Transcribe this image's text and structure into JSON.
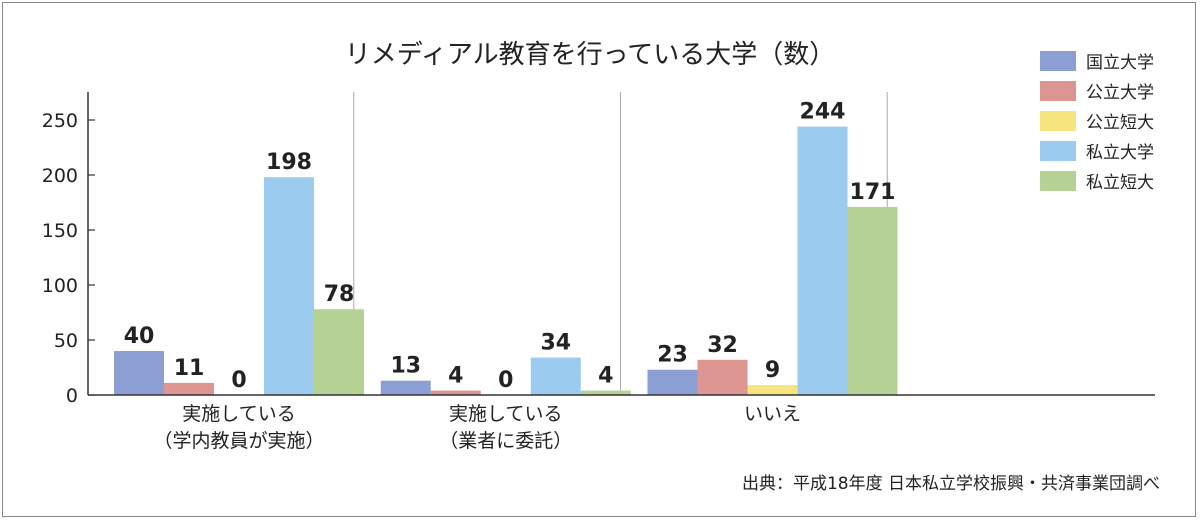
{
  "title": "リメディアル教育を行っている大学（数）",
  "source": "出典：平成18年度 日本私立学校振興・共済事業団調べ",
  "chart_data": {
    "type": "bar",
    "title": "リメディアル教育を行っている大学（数）",
    "categories": [
      [
        "実施している",
        "（学内教員が実施）"
      ],
      [
        "実施している",
        "（業者に委託）"
      ],
      [
        "いいえ"
      ],
      []
    ],
    "series": [
      {
        "name": "国立大学",
        "color": "#8b9fd4",
        "values": [
          40,
          13,
          23,
          null
        ]
      },
      {
        "name": "公立大学",
        "color": "#dc9591",
        "values": [
          11,
          4,
          32,
          null
        ]
      },
      {
        "name": "公立短大",
        "color": "#f6e57e",
        "values": [
          0,
          0,
          9,
          null
        ]
      },
      {
        "name": "私立大学",
        "color": "#9ccbf0",
        "values": [
          198,
          34,
          244,
          null
        ]
      },
      {
        "name": "私立短大",
        "color": "#b5d193",
        "values": [
          78,
          4,
          171,
          null
        ]
      }
    ],
    "ylim": [
      0,
      270
    ],
    "yticks": [
      0,
      50,
      100,
      150,
      200,
      250
    ],
    "legend_position": "top-right",
    "grid": false
  }
}
